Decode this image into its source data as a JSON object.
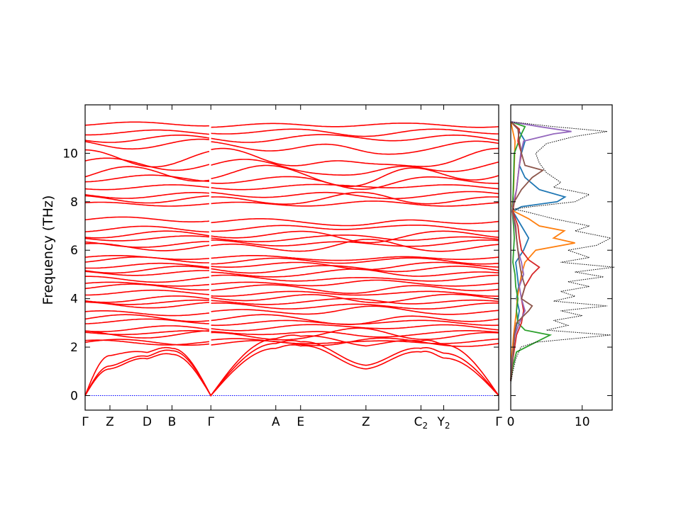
{
  "chart_data": [
    {
      "type": "line",
      "title": "",
      "xlabel": "",
      "ylabel": "Frequency (THz)",
      "ylim": [
        -0.6,
        12.0
      ],
      "y_ticks": [
        0,
        2,
        4,
        6,
        8,
        10
      ],
      "x_ticks": [
        {
          "label": "Γ",
          "sub": ""
        },
        {
          "label": "Z",
          "sub": ""
        },
        {
          "label": "D",
          "sub": ""
        },
        {
          "label": "B",
          "sub": ""
        },
        {
          "label": "Γ",
          "sub": ""
        },
        {
          "label": "A",
          "sub": ""
        },
        {
          "label": "E",
          "sub": ""
        },
        {
          "label": "Z",
          "sub": ""
        },
        {
          "label": "C",
          "sub": "2"
        },
        {
          "label": "Y",
          "sub": "2"
        },
        {
          "label": "Γ",
          "sub": ""
        }
      ],
      "path_points": [
        0.0,
        0.06,
        0.15,
        0.21,
        0.304,
        0.461,
        0.521,
        0.679,
        0.812,
        0.867,
        1.0
      ],
      "band_color": "#ff0000",
      "zero_line_color": "#0000ff",
      "gap_at_point": 4,
      "discontinuity_offsets": [
        0.05,
        -0.06,
        0.08,
        0.0,
        -0.04,
        0.06,
        0.0,
        -0.05,
        0.04,
        0.0,
        -0.07,
        0.05,
        0.03,
        0.0,
        -0.05,
        0.06,
        0.0,
        -0.04,
        0.05,
        0.0,
        0.03,
        -0.06,
        0.04,
        0.0,
        -0.03,
        0.07,
        0.0,
        0.05,
        -0.04,
        0.0,
        0.06,
        -0.05
      ],
      "acoustic_branches": [
        {
          "Gamma1": 0,
          "Z": 1.1,
          "D": 1.52,
          "B": 1.7,
          "Gamma2": 0,
          "A": 1.95,
          "E": 2.05,
          "Z2": 1.1,
          "C2": 1.8,
          "Y2": 1.55,
          "Gamma3": 0
        },
        {
          "Gamma1": 0,
          "Z": 1.22,
          "D": 1.62,
          "B": 1.85,
          "Gamma2": 0,
          "A": 2.15,
          "E": 2.22,
          "Z2": 1.25,
          "C2": 1.95,
          "Y2": 1.75,
          "Gamma3": 0
        },
        {
          "Gamma1": 0,
          "Z": 1.65,
          "D": 1.78,
          "B": 1.95,
          "Gamma2": 0,
          "A": 2.35,
          "E": 2.45,
          "Z2": 2.05,
          "C2": 2.25,
          "Y2": 2.1,
          "Gamma3": 0
        }
      ],
      "optical_bands_at_gamma": [
        2.15,
        2.25,
        2.45,
        2.6,
        2.8,
        3.0,
        3.2,
        3.45,
        3.7,
        3.85,
        4.05,
        4.2,
        4.45,
        4.6,
        4.85,
        5.0,
        5.2,
        5.4,
        5.55,
        5.7,
        6.1,
        6.3,
        6.45,
        6.65,
        6.9,
        7.2,
        7.9,
        8.05,
        8.3,
        8.6,
        8.9,
        9.2,
        9.5,
        9.85,
        10.3,
        10.6,
        10.9,
        11.15
      ],
      "optical_band_shapes": [
        {
          "amp": 0.12,
          "z_dip": 0.15
        },
        {
          "amp": 0.1,
          "z_dip": -0.1
        },
        {
          "amp": 0.15,
          "z_dip": 0.2
        },
        {
          "amp": 0.08,
          "z_dip": -0.15
        },
        {
          "amp": 0.12,
          "z_dip": 0.1
        },
        {
          "amp": 0.1,
          "z_dip": 0.05
        },
        {
          "amp": 0.14,
          "z_dip": -0.2
        },
        {
          "amp": 0.1,
          "z_dip": 0.15
        },
        {
          "amp": 0.12,
          "z_dip": -0.05
        },
        {
          "amp": 0.09,
          "z_dip": 0.1
        },
        {
          "amp": 0.13,
          "z_dip": -0.1
        },
        {
          "amp": 0.1,
          "z_dip": 0.05
        },
        {
          "amp": 0.12,
          "z_dip": -0.15
        },
        {
          "amp": 0.08,
          "z_dip": 0.1
        },
        {
          "amp": 0.12,
          "z_dip": -0.1
        },
        {
          "amp": 0.1,
          "z_dip": 0.15
        },
        {
          "amp": 0.14,
          "z_dip": 0.1
        },
        {
          "amp": 0.1,
          "z_dip": -0.1
        },
        {
          "amp": 0.12,
          "z_dip": 0.05
        },
        {
          "amp": 0.08,
          "z_dip": -0.1
        },
        {
          "amp": 0.15,
          "z_dip": 0.2
        },
        {
          "amp": 0.12,
          "z_dip": -0.1
        },
        {
          "amp": 0.1,
          "z_dip": 0.15
        },
        {
          "amp": 0.14,
          "z_dip": -0.2
        },
        {
          "amp": 0.12,
          "z_dip": 0.1
        },
        {
          "amp": 0.1,
          "z_dip": -0.15
        },
        {
          "amp": 0.08,
          "z_dip": 0.05
        },
        {
          "amp": 0.15,
          "z_dip": 0.2
        },
        {
          "amp": 0.12,
          "z_dip": -0.1
        },
        {
          "amp": 0.1,
          "z_dip": 0.1
        },
        {
          "amp": 0.14,
          "z_dip": -0.25
        },
        {
          "amp": 0.3,
          "z_dip": -0.4
        },
        {
          "amp": 0.25,
          "z_dip": -0.5
        },
        {
          "amp": 0.35,
          "z_dip": -0.6
        },
        {
          "amp": 0.2,
          "z_dip": -0.3
        },
        {
          "amp": 0.15,
          "z_dip": 0.1
        },
        {
          "amp": 0.1,
          "z_dip": -0.1
        },
        {
          "amp": 0.08,
          "z_dip": 0.05
        }
      ]
    },
    {
      "type": "line",
      "title": "",
      "xlabel": "",
      "ylabel": "",
      "xlim": [
        0,
        14.2
      ],
      "ylim": [
        -0.6,
        12.0
      ],
      "x_ticks": [
        0,
        10
      ],
      "total_dos": {
        "color": "#000000",
        "style": "dotted",
        "points": [
          [
            0.5,
            0.0
          ],
          [
            1.0,
            0.3
          ],
          [
            1.5,
            0.7
          ],
          [
            2.0,
            1.4
          ],
          [
            2.2,
            3.5
          ],
          [
            2.5,
            14.0
          ],
          [
            2.7,
            5.0
          ],
          [
            2.9,
            8.0
          ],
          [
            3.1,
            6.0
          ],
          [
            3.3,
            10.0
          ],
          [
            3.5,
            7.0
          ],
          [
            3.7,
            13.5
          ],
          [
            3.9,
            6.0
          ],
          [
            4.1,
            9.0
          ],
          [
            4.3,
            7.0
          ],
          [
            4.5,
            11.0
          ],
          [
            4.7,
            8.0
          ],
          [
            4.9,
            13.0
          ],
          [
            5.1,
            9.0
          ],
          [
            5.3,
            14.5
          ],
          [
            5.5,
            7.0
          ],
          [
            5.7,
            11.0
          ],
          [
            6.0,
            8.0
          ],
          [
            6.2,
            12.0
          ],
          [
            6.5,
            14.0
          ],
          [
            6.8,
            9.0
          ],
          [
            7.0,
            11.0
          ],
          [
            7.3,
            6.0
          ],
          [
            7.6,
            2.0
          ],
          [
            7.7,
            0.3
          ],
          [
            7.8,
            3.0
          ],
          [
            8.0,
            9.0
          ],
          [
            8.3,
            11.0
          ],
          [
            8.6,
            6.0
          ],
          [
            8.8,
            7.0
          ],
          [
            9.2,
            5.0
          ],
          [
            9.6,
            4.0
          ],
          [
            10.0,
            3.5
          ],
          [
            10.4,
            5.0
          ],
          [
            10.7,
            9.0
          ],
          [
            10.9,
            13.5
          ],
          [
            11.1,
            6.0
          ],
          [
            11.3,
            0.0
          ]
        ]
      },
      "series": [
        {
          "color": "#1f77b4",
          "points": [
            [
              0.6,
              0.0
            ],
            [
              1.5,
              0.2
            ],
            [
              2.5,
              0.5
            ],
            [
              3.0,
              0.9
            ],
            [
              3.5,
              1.2
            ],
            [
              4.0,
              0.8
            ],
            [
              4.5,
              1.1
            ],
            [
              5.0,
              0.9
            ],
            [
              5.5,
              0.7
            ],
            [
              6.0,
              1.8
            ],
            [
              6.5,
              2.5
            ],
            [
              7.0,
              1.5
            ],
            [
              7.6,
              0.3
            ],
            [
              7.8,
              1.5
            ],
            [
              8.0,
              6.5
            ],
            [
              8.2,
              7.6
            ],
            [
              8.5,
              4.0
            ],
            [
              9.0,
              2.0
            ],
            [
              9.5,
              1.2
            ],
            [
              10.0,
              1.5
            ],
            [
              10.5,
              2.0
            ],
            [
              11.0,
              1.0
            ],
            [
              11.3,
              0.0
            ]
          ]
        },
        {
          "color": "#ff7f0e",
          "points": [
            [
              0.6,
              0.0
            ],
            [
              1.5,
              0.1
            ],
            [
              2.5,
              0.4
            ],
            [
              3.0,
              0.6
            ],
            [
              3.5,
              0.8
            ],
            [
              4.0,
              0.9
            ],
            [
              4.5,
              1.2
            ],
            [
              5.0,
              1.5
            ],
            [
              5.5,
              2.0
            ],
            [
              6.0,
              3.5
            ],
            [
              6.3,
              9.0
            ],
            [
              6.5,
              6.0
            ],
            [
              6.8,
              7.5
            ],
            [
              7.0,
              4.0
            ],
            [
              7.3,
              2.5
            ],
            [
              7.6,
              0.5
            ],
            [
              7.8,
              0.2
            ],
            [
              8.5,
              0.4
            ],
            [
              9.5,
              0.5
            ],
            [
              10.5,
              0.6
            ],
            [
              11.3,
              0.0
            ]
          ]
        },
        {
          "color": "#2ca02c",
          "points": [
            [
              0.6,
              0.0
            ],
            [
              1.2,
              0.3
            ],
            [
              1.8,
              0.8
            ],
            [
              2.2,
              3.5
            ],
            [
              2.5,
              5.5
            ],
            [
              2.7,
              2.0
            ],
            [
              3.0,
              1.0
            ],
            [
              3.5,
              0.8
            ],
            [
              4.0,
              1.0
            ],
            [
              4.5,
              0.7
            ],
            [
              5.0,
              0.6
            ],
            [
              5.5,
              0.3
            ],
            [
              6.0,
              0.4
            ],
            [
              6.5,
              0.5
            ],
            [
              7.0,
              0.4
            ],
            [
              7.6,
              0.2
            ],
            [
              8.0,
              0.3
            ],
            [
              9.0,
              0.4
            ],
            [
              10.0,
              0.5
            ],
            [
              10.8,
              1.5
            ],
            [
              11.1,
              2.0
            ],
            [
              11.3,
              0.0
            ]
          ]
        },
        {
          "color": "#d62728",
          "points": [
            [
              0.6,
              0.0
            ],
            [
              1.5,
              0.3
            ],
            [
              2.5,
              0.8
            ],
            [
              3.0,
              1.5
            ],
            [
              3.5,
              1.8
            ],
            [
              4.0,
              1.5
            ],
            [
              4.5,
              2.0
            ],
            [
              5.0,
              3.0
            ],
            [
              5.3,
              4.0
            ],
            [
              5.6,
              2.5
            ],
            [
              6.0,
              1.5
            ],
            [
              6.5,
              1.2
            ],
            [
              7.0,
              1.0
            ],
            [
              7.6,
              0.3
            ],
            [
              8.0,
              0.5
            ],
            [
              8.5,
              0.8
            ],
            [
              9.0,
              1.0
            ],
            [
              9.5,
              1.2
            ],
            [
              10.0,
              1.5
            ],
            [
              10.5,
              1.0
            ],
            [
              11.0,
              1.2
            ],
            [
              11.3,
              0.0
            ]
          ]
        },
        {
          "color": "#9467bd",
          "points": [
            [
              0.6,
              0.0
            ],
            [
              1.5,
              0.2
            ],
            [
              2.5,
              0.6
            ],
            [
              3.0,
              1.2
            ],
            [
              3.5,
              2.0
            ],
            [
              4.0,
              1.5
            ],
            [
              4.5,
              1.2
            ],
            [
              5.0,
              1.8
            ],
            [
              5.5,
              1.5
            ],
            [
              6.0,
              1.0
            ],
            [
              6.5,
              0.8
            ],
            [
              7.0,
              0.6
            ],
            [
              7.6,
              0.2
            ],
            [
              8.0,
              0.4
            ],
            [
              8.5,
              0.8
            ],
            [
              9.0,
              1.0
            ],
            [
              9.5,
              1.2
            ],
            [
              10.0,
              1.4
            ],
            [
              10.5,
              1.8
            ],
            [
              10.8,
              6.0
            ],
            [
              10.9,
              8.5
            ],
            [
              11.1,
              4.0
            ],
            [
              11.3,
              0.0
            ]
          ]
        },
        {
          "color": "#8c564b",
          "points": [
            [
              0.6,
              0.0
            ],
            [
              1.5,
              0.3
            ],
            [
              2.5,
              0.5
            ],
            [
              3.0,
              0.8
            ],
            [
              3.5,
              2.5
            ],
            [
              3.7,
              3.0
            ],
            [
              4.0,
              1.5
            ],
            [
              4.5,
              2.0
            ],
            [
              5.0,
              1.5
            ],
            [
              5.5,
              1.2
            ],
            [
              6.0,
              1.0
            ],
            [
              6.5,
              0.8
            ],
            [
              7.0,
              0.7
            ],
            [
              7.6,
              0.2
            ],
            [
              8.0,
              0.5
            ],
            [
              8.5,
              1.5
            ],
            [
              9.0,
              3.0
            ],
            [
              9.3,
              4.5
            ],
            [
              9.5,
              2.0
            ],
            [
              10.0,
              1.5
            ],
            [
              10.5,
              1.2
            ],
            [
              11.0,
              1.0
            ],
            [
              11.3,
              0.0
            ]
          ]
        }
      ]
    }
  ]
}
